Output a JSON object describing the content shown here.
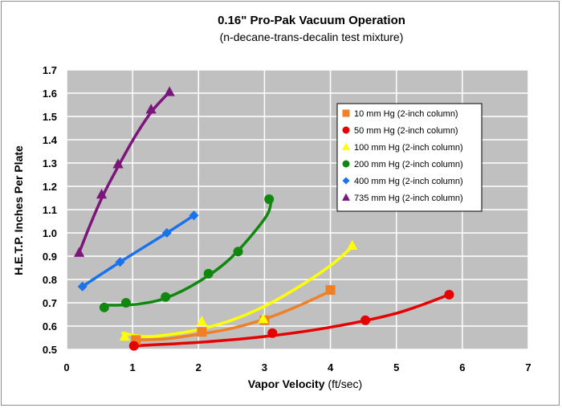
{
  "chart_data": {
    "type": "scatter",
    "title": "0.16\" Pro-Pak Vacuum Operation",
    "subtitle": "(n-decane-trans-decalin test mixture)",
    "xlabel_bold": "Vapor Velocity",
    "xlabel_rest": " (ft/sec)",
    "ylabel": "H.E.T.P. Inches Per Plate",
    "xlim": [
      0,
      7
    ],
    "ylim": [
      0.5,
      1.7
    ],
    "xticks": [
      "0",
      "1",
      "2",
      "3",
      "4",
      "5",
      "6",
      "7"
    ],
    "yticks": [
      "0.5",
      "0.6",
      "0.7",
      "0.8",
      "0.9",
      "1.0",
      "1.1",
      "1.2",
      "1.3",
      "1.4",
      "1.5",
      "1.6",
      "1.7"
    ],
    "grid": true,
    "background": "#c0c0c0",
    "gridline_color": "#ffffff",
    "legend_position": "right",
    "series": [
      {
        "name": "10 mm Hg (2-inch column)",
        "marker": "square",
        "color": "#f07f26",
        "x": [
          1.05,
          2.05,
          3.0,
          4.0
        ],
        "y": [
          0.54,
          0.575,
          0.625,
          0.755
        ],
        "fit": [
          [
            1.0,
            0.54
          ],
          [
            1.5,
            0.545
          ],
          [
            2.0,
            0.565
          ],
          [
            2.5,
            0.59
          ],
          [
            3.0,
            0.63
          ],
          [
            3.5,
            0.685
          ],
          [
            4.0,
            0.75
          ]
        ]
      },
      {
        "name": "50 mm Hg (2-inch column)",
        "marker": "circle",
        "color": "#e60000",
        "x": [
          1.02,
          3.12,
          4.53,
          5.8
        ],
        "y": [
          0.515,
          0.57,
          0.625,
          0.735
        ],
        "fit": [
          [
            1.0,
            0.515
          ],
          [
            2.0,
            0.53
          ],
          [
            3.0,
            0.555
          ],
          [
            4.0,
            0.595
          ],
          [
            5.0,
            0.655
          ],
          [
            5.8,
            0.735
          ]
        ]
      },
      {
        "name": "100 mm Hg (2-inch column)",
        "marker": "triangle",
        "color": "#ffff00",
        "x": [
          0.88,
          2.05,
          2.98,
          4.33
        ],
        "y": [
          0.555,
          0.62,
          0.63,
          0.945
        ],
        "fit": [
          [
            0.85,
            0.57
          ],
          [
            1.2,
            0.555
          ],
          [
            1.6,
            0.565
          ],
          [
            2.0,
            0.585
          ],
          [
            2.5,
            0.625
          ],
          [
            3.0,
            0.685
          ],
          [
            3.5,
            0.765
          ],
          [
            4.0,
            0.86
          ],
          [
            4.33,
            0.94
          ]
        ]
      },
      {
        "name": "200 mm Hg (2-inch column)",
        "marker": "circle",
        "color": "#108810",
        "x": [
          0.57,
          0.9,
          1.5,
          2.15,
          2.6,
          3.07
        ],
        "y": [
          0.68,
          0.7,
          0.725,
          0.825,
          0.92,
          1.145
        ],
        "fit": [
          [
            0.55,
            0.69
          ],
          [
            0.8,
            0.69
          ],
          [
            1.1,
            0.695
          ],
          [
            1.5,
            0.72
          ],
          [
            2.0,
            0.79
          ],
          [
            2.5,
            0.895
          ],
          [
            3.0,
            1.06
          ],
          [
            3.1,
            1.13
          ]
        ]
      },
      {
        "name": "400 mm Hg (2-inch column)",
        "marker": "diamond",
        "color": "#1a73e8",
        "x": [
          0.24,
          0.81,
          1.52,
          1.93
        ],
        "y": [
          0.77,
          0.875,
          1.0,
          1.075
        ],
        "fit": [
          [
            0.24,
            0.77
          ],
          [
            0.81,
            0.875
          ],
          [
            1.52,
            1.0
          ],
          [
            1.93,
            1.075
          ]
        ]
      },
      {
        "name": "735 mm Hg (2-inch column)",
        "marker": "triangle",
        "color": "#7b177b",
        "x": [
          0.19,
          0.53,
          0.78,
          1.28,
          1.56
        ],
        "y": [
          0.915,
          1.165,
          1.295,
          1.53,
          1.605
        ],
        "fit": [
          [
            0.19,
            0.915
          ],
          [
            0.35,
            1.03
          ],
          [
            0.55,
            1.16
          ],
          [
            0.8,
            1.295
          ],
          [
            1.05,
            1.42
          ],
          [
            1.3,
            1.525
          ],
          [
            1.56,
            1.605
          ]
        ]
      }
    ]
  }
}
